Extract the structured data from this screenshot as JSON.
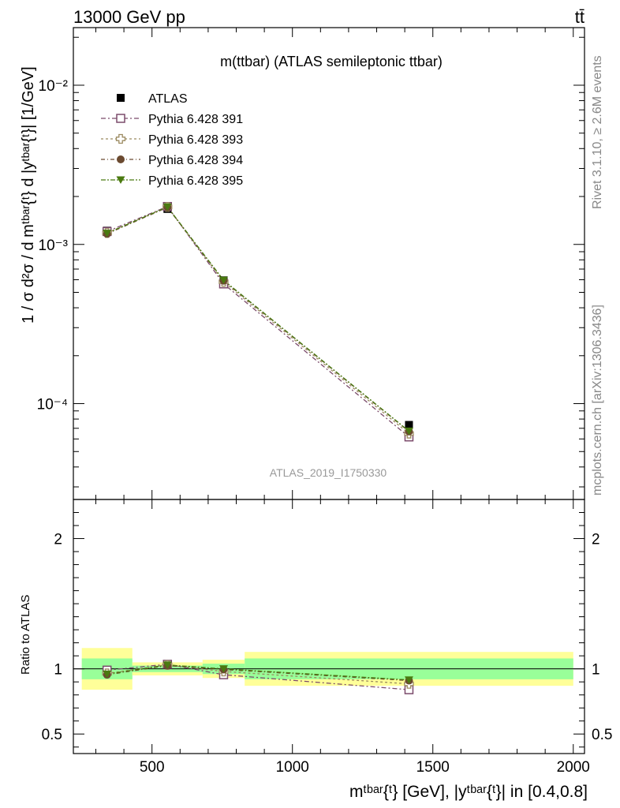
{
  "header": {
    "left": "13000 GeV pp",
    "right": "tt̄"
  },
  "side_text": {
    "rivet": "Rivet 3.1.10, ≥ 2.6M events",
    "mcplots": "mcplots.cern.ch [arXiv:1306.3436]"
  },
  "chart_data": {
    "type": "scatter",
    "title": "m(ttbar) (ATLAS semileptonic ttbar)",
    "watermark": "ATLAS_2019_I1750330",
    "ylabel_main": "1 / σ d²σ / d mᵗᵇᵃʳ{ᵗ} d |yᵗᵇᵃʳ{ᵗ}| [1/GeV]",
    "ylabel_ratio": "Ratio to ATLAS",
    "xlabel": "mᵗᵇᵃʳ{ᵗ} [GeV], |yᵗᵇᵃʳ{ᵗ}| in [0.4,0.8]",
    "xlim": [
      220,
      2040
    ],
    "ylim_main": [
      2.5e-05,
      0.023
    ],
    "yscale_main": "log",
    "ylim_ratio": [
      0.35,
      2.3
    ],
    "x_ticks": [
      "500",
      "1000",
      "1500",
      "2000"
    ],
    "main_y_ticks": [
      "10⁻²",
      "10⁻³",
      "10⁻⁴"
    ],
    "ratio_y_ticks": [
      "2",
      "1",
      "0.5"
    ],
    "legend_position": "top-left",
    "bins": [
      {
        "lo": 250,
        "hi": 430,
        "x": 340,
        "y": 0.00122,
        "yerr": 3e-05
      },
      {
        "lo": 430,
        "hi": 680,
        "x": 555,
        "y": 0.00167,
        "yerr": 3e-05
      },
      {
        "lo": 680,
        "hi": 830,
        "x": 755,
        "y": 0.000595,
        "yerr": 1e-05
      },
      {
        "lo": 830,
        "hi": 2000,
        "x": 1415,
        "y": 7.35e-05,
        "yerr": 2e-06
      }
    ],
    "ratio_band_inner": [
      0.08,
      0.025,
      0.04,
      0.08
    ],
    "ratio_band_outer": [
      0.16,
      0.05,
      0.07,
      0.13
    ],
    "series": [
      {
        "name": "ATLAS",
        "marker": "filled-square",
        "color": "#000000",
        "values": [
          0.00122,
          0.00167,
          0.000595,
          7.35e-05
        ],
        "ratio": [
          1,
          1,
          1,
          1
        ]
      },
      {
        "name": "Pythia 6.428 391",
        "marker": "open-square",
        "color": "#7b4b6b",
        "values": [
          0.001205,
          0.00173,
          0.000565,
          6.18e-05
        ],
        "ratio": [
          0.99,
          1.035,
          0.955,
          0.84
        ]
      },
      {
        "name": "Pythia 6.428 393",
        "marker": "open-cross",
        "color": "#9b8a60",
        "values": [
          0.00118,
          0.00172,
          0.000582,
          6.48e-05
        ],
        "ratio": [
          0.965,
          1.03,
          0.98,
          0.885
        ]
      },
      {
        "name": "Pythia 6.428 394",
        "marker": "filled-circle",
        "color": "#6b4a30",
        "values": [
          0.001165,
          0.00171,
          0.000592,
          6.68e-05
        ],
        "ratio": [
          0.955,
          1.025,
          0.995,
          0.91
        ]
      },
      {
        "name": "Pythia 6.428 395",
        "marker": "filled-triangle",
        "color": "#4a7a10",
        "values": [
          0.001175,
          0.00172,
          0.000596,
          6.72e-05
        ],
        "ratio": [
          0.96,
          1.03,
          1.0,
          0.915
        ]
      }
    ]
  }
}
